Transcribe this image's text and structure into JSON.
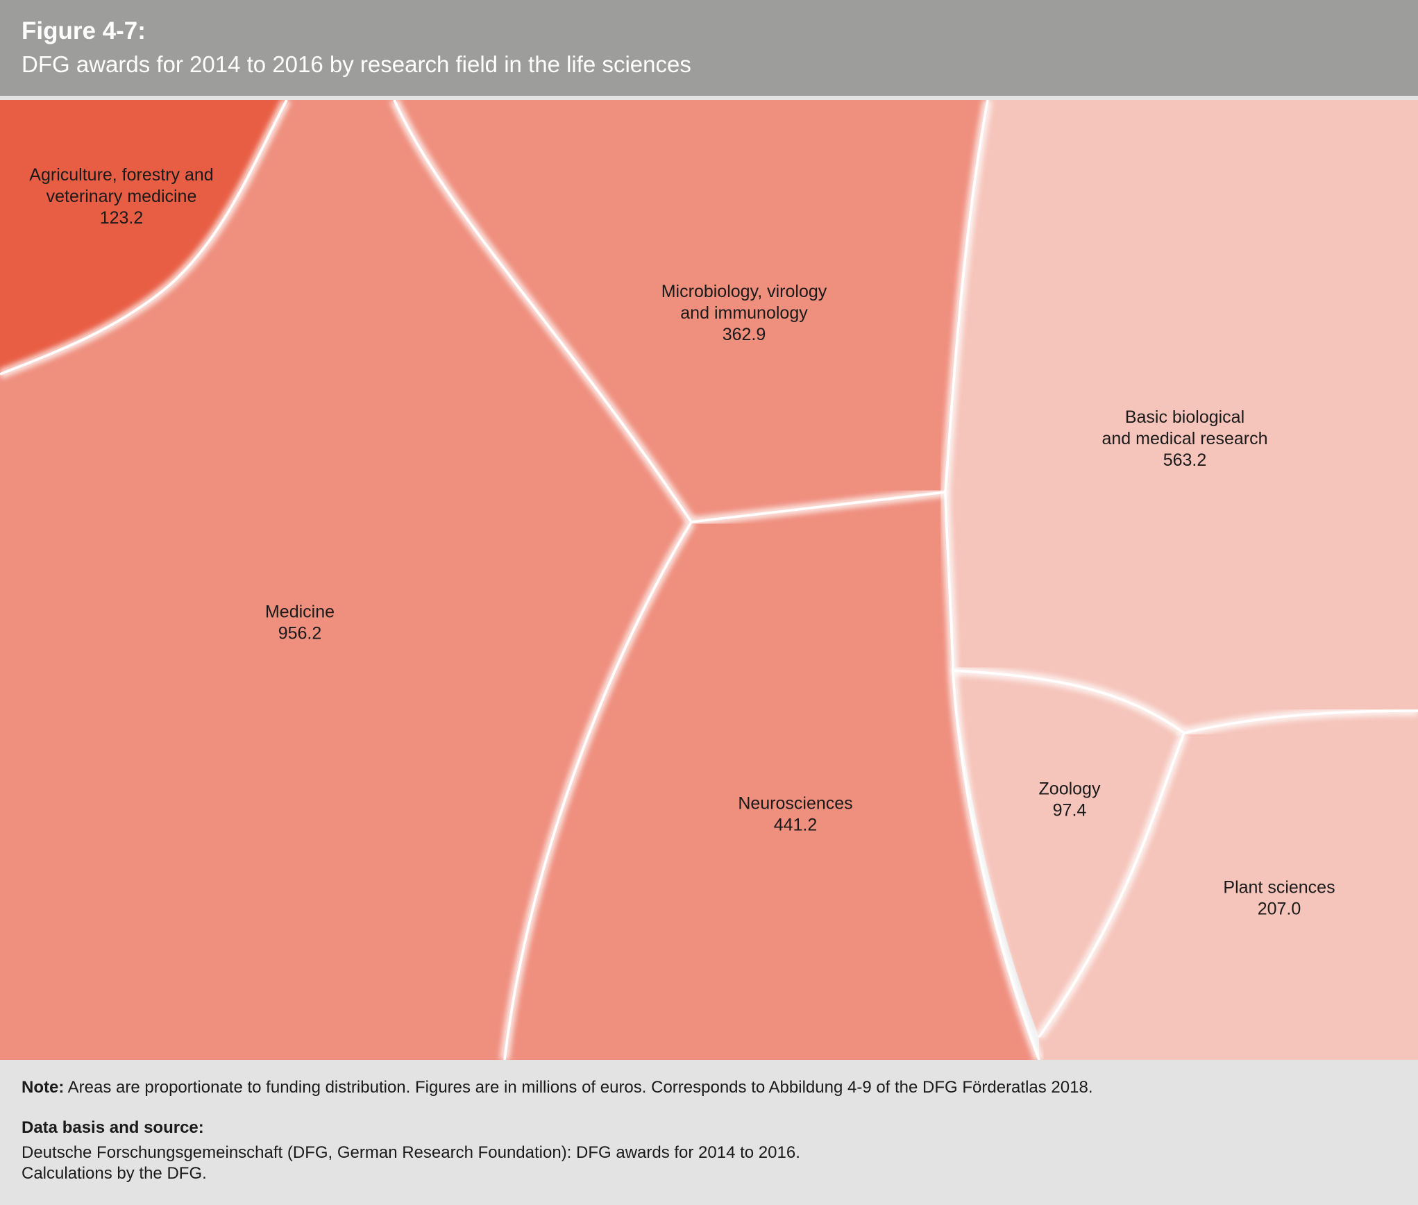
{
  "header": {
    "figure_label": "Figure 4-7:",
    "title": "DFG awards for 2014 to 2016 by research field in the life sciences"
  },
  "chart_data": {
    "type": "voronoi-treemap",
    "title": "DFG awards for 2014 to 2016 by research field in the life sciences",
    "unit": "millions of euros",
    "cells": [
      {
        "id": "agriculture",
        "label_lines": [
          "Agriculture, forestry and",
          "veterinary medicine"
        ],
        "value_text": "123.2",
        "value": 123.2,
        "color": "#e85e44"
      },
      {
        "id": "medicine",
        "label_lines": [
          "Medicine"
        ],
        "value_text": "956.2",
        "value": 956.2,
        "color": "#ef8f7e"
      },
      {
        "id": "microbiology",
        "label_lines": [
          "Microbiology, virology",
          "and immunology"
        ],
        "value_text": "362.9",
        "value": 362.9,
        "color": "#ef8f7e"
      },
      {
        "id": "neurosciences",
        "label_lines": [
          "Neurosciences"
        ],
        "value_text": "441.2",
        "value": 441.2,
        "color": "#ef8f7e"
      },
      {
        "id": "basic",
        "label_lines": [
          "Basic biological",
          "and medical research"
        ],
        "value_text": "563.2",
        "value": 563.2,
        "color": "#f5c4ba"
      },
      {
        "id": "zoology",
        "label_lines": [
          "Zoology"
        ],
        "value_text": "97.4",
        "value": 97.4,
        "color": "#f5c4ba"
      },
      {
        "id": "plant",
        "label_lines": [
          "Plant sciences"
        ],
        "value_text": "207.0",
        "value": 207.0,
        "color": "#f5c4ba"
      }
    ]
  },
  "footer": {
    "note_label": "Note:",
    "note_text": " Areas are proportionate to funding distribution. Figures are in millions of euros. Corresponds to Abbildung 4-9 of the DFG Förderatlas 2018.",
    "source_heading": "Data basis and source:",
    "source_lines": [
      "Deutsche Forschungsgemeinschaft (DFG, German Research Foundation): DFG awards for 2014 to 2016.",
      "Calculations by the DFG."
    ]
  }
}
